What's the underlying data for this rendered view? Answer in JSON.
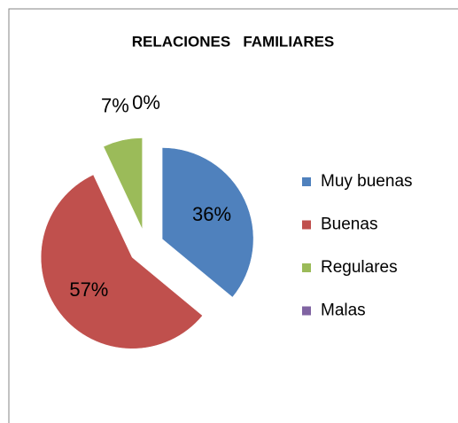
{
  "chart_data": {
    "type": "pie",
    "title": "RELACIONES   FAMILIARES",
    "categories": [
      "Muy buenas",
      "Buenas",
      "Regulares",
      "Malas"
    ],
    "values": [
      36,
      57,
      7,
      0
    ],
    "value_labels": [
      "36%",
      "57%",
      "7%",
      "0%"
    ],
    "colors": [
      "#4f81bd",
      "#c0504d",
      "#9bbb59",
      "#8064a2"
    ],
    "legend": "right"
  }
}
